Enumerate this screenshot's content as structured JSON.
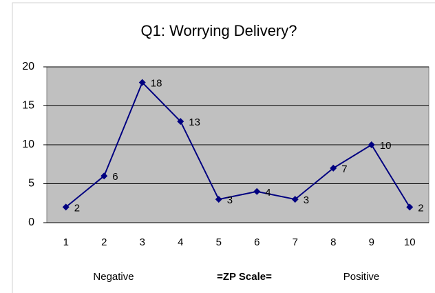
{
  "chart_data": {
    "type": "line",
    "title": "Q1: Worrying Delivery?",
    "categories": [
      "1",
      "2",
      "3",
      "4",
      "5",
      "6",
      "7",
      "8",
      "9",
      "10"
    ],
    "values": [
      2,
      6,
      18,
      13,
      3,
      4,
      3,
      7,
      10,
      2
    ],
    "color": "#000080",
    "ylim": [
      0,
      20
    ],
    "yticks": [
      0,
      5,
      10,
      15,
      20
    ],
    "grid": true,
    "annotations": [
      "Negative",
      "=ZP Scale=",
      "Positive"
    ]
  }
}
